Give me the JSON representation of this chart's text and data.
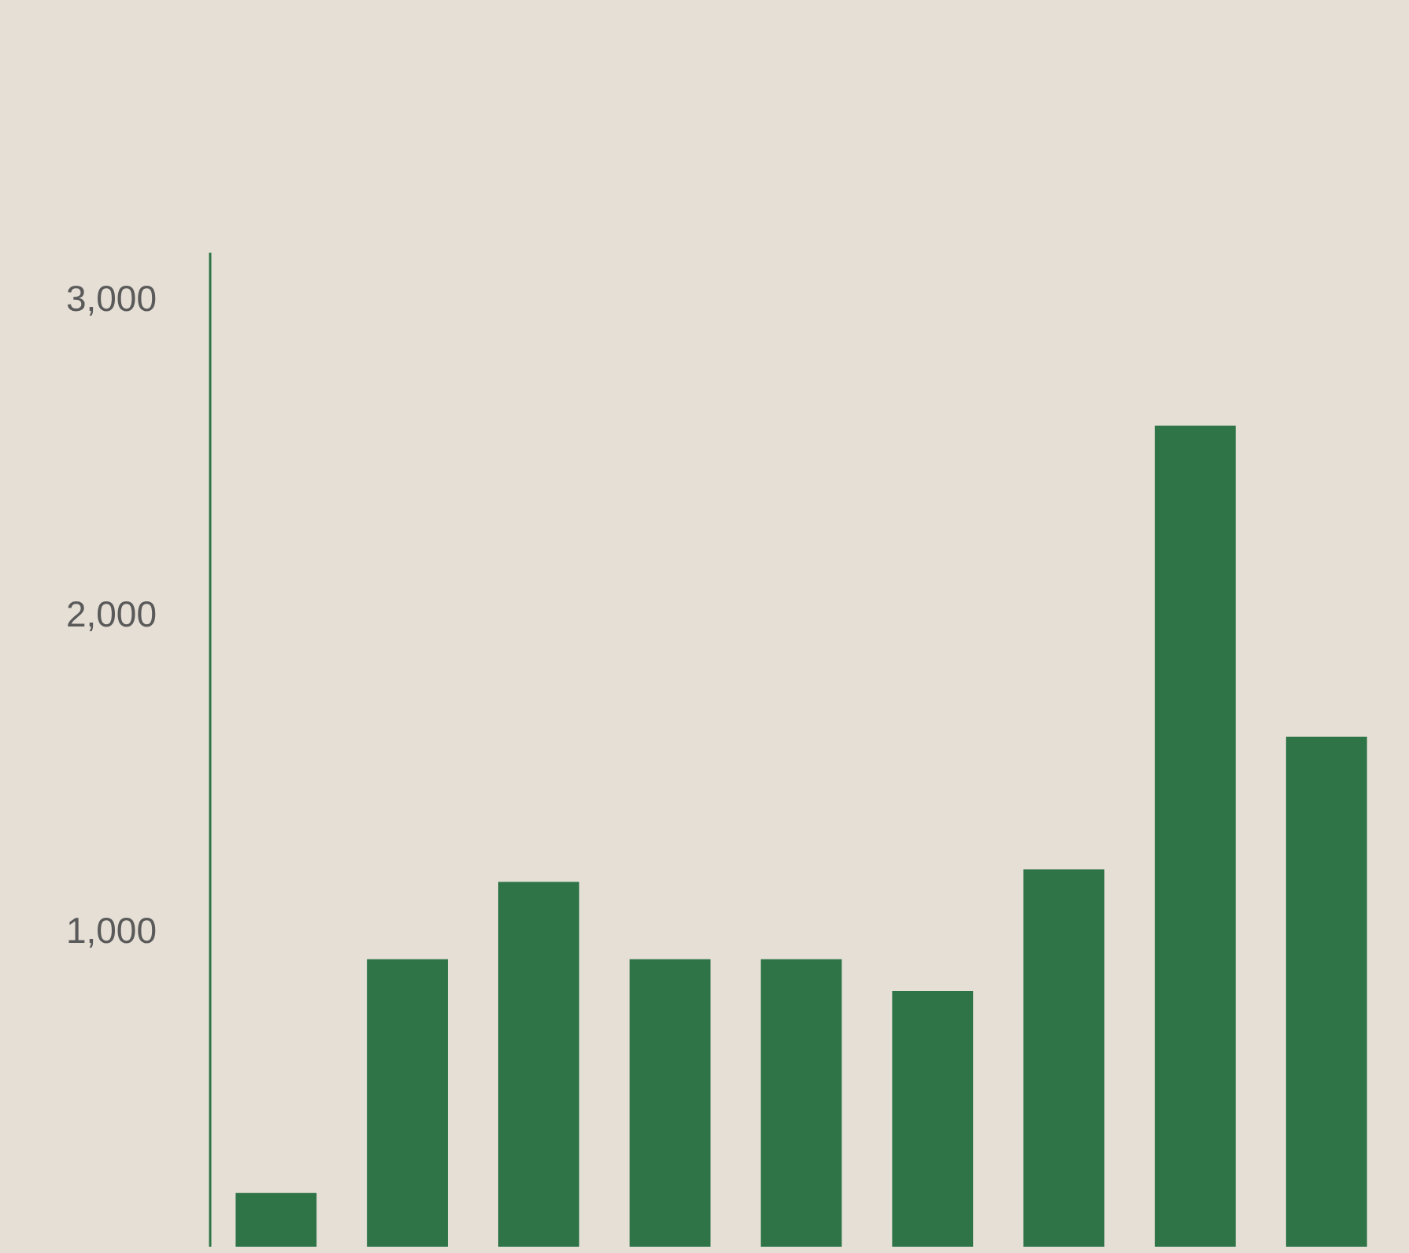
{
  "chart_data": {
    "type": "bar",
    "categories": [
      null,
      null,
      null,
      null,
      null,
      null,
      null,
      null,
      null
    ],
    "values": [
      170,
      910,
      1155,
      910,
      910,
      810,
      1195,
      2600,
      1615
    ],
    "color": "#2e7447",
    "ylim": [
      0,
      3150
    ],
    "yticks": [
      {
        "value": 1000,
        "label": "1,000"
      },
      {
        "value": 2000,
        "label": "2,000"
      },
      {
        "value": 3000,
        "label": "3,000"
      }
    ],
    "grid": false
  }
}
